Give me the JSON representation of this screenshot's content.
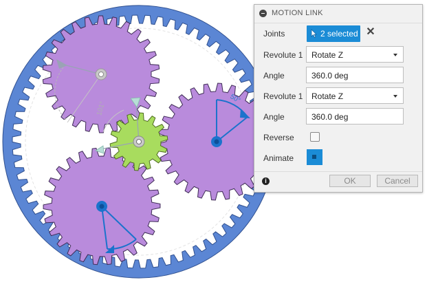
{
  "canvas": {
    "angle_labels": [
      "101°",
      "50°"
    ]
  },
  "dialog": {
    "title": "MOTION LINK",
    "joints_label": "Joints",
    "joints_button": "2 selected",
    "rows": [
      {
        "label": "Revolute 1",
        "value": "Rotate Z"
      },
      {
        "label": "Angle",
        "value": "360.0 deg"
      },
      {
        "label": "Revolute 1",
        "value": "Rotate Z"
      },
      {
        "label": "Angle",
        "value": "360.0 deg"
      }
    ],
    "reverse_label": "Reverse",
    "reverse_checked": false,
    "animate_label": "Animate",
    "ok_label": "OK",
    "cancel_label": "Cancel"
  },
  "colors": {
    "ring_gear": "#5b86d4",
    "planet_gear": "#b98bdc",
    "sun_gear": "#a8dc5e",
    "selection_blue": "#1b8cd6"
  }
}
